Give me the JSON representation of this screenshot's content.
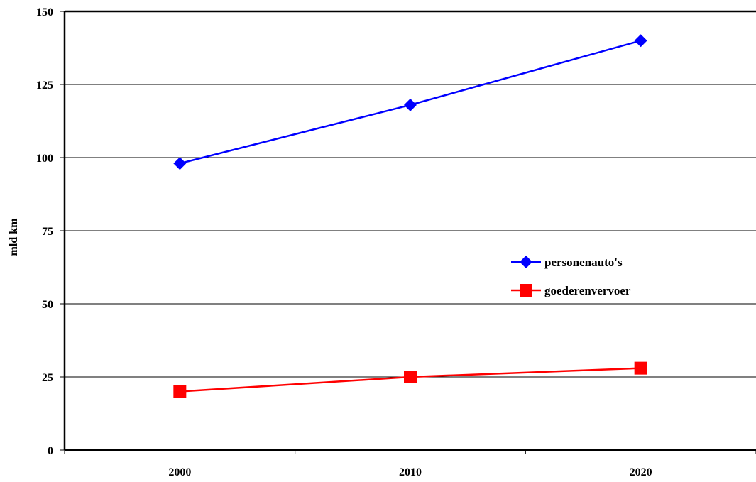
{
  "chart_data": {
    "type": "line",
    "title": "",
    "xlabel": "",
    "ylabel": "mld km",
    "categories": [
      "2000",
      "2010",
      "2020"
    ],
    "ylim": [
      0,
      150
    ],
    "yticks": [
      "0",
      "25",
      "50",
      "75",
      "100",
      "125",
      "150"
    ],
    "grid": "horizontal",
    "legend_position": "right-center",
    "series": [
      {
        "name": "personenauto's",
        "values": [
          98,
          118,
          140
        ],
        "color": "#0000ff",
        "marker": "diamond"
      },
      {
        "name": "goederenvervoer",
        "values": [
          20,
          25,
          28
        ],
        "color": "#ff0000",
        "marker": "square"
      }
    ]
  }
}
